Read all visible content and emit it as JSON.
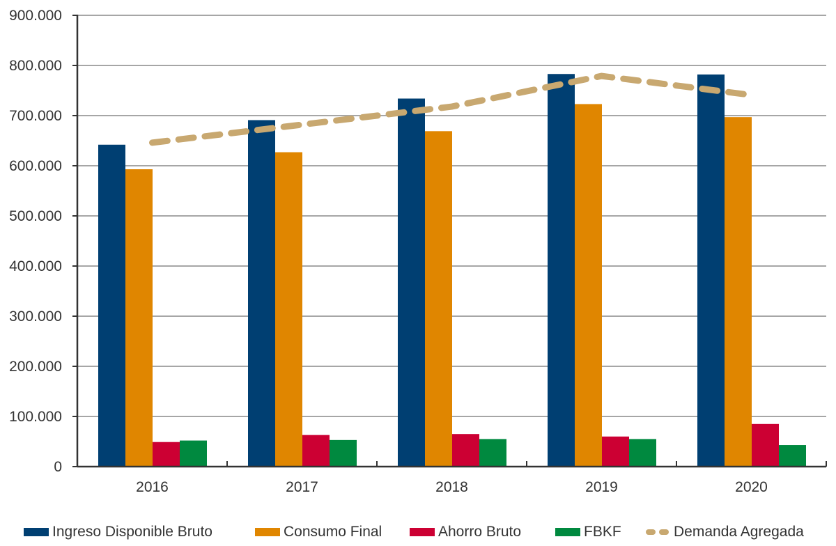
{
  "chart_data": {
    "type": "bar",
    "title": "",
    "xlabel": "",
    "ylabel": "",
    "categories": [
      "2016",
      "2017",
      "2018",
      "2019",
      "2020"
    ],
    "ylim": [
      0,
      900000
    ],
    "yticks": [
      0,
      100000,
      200000,
      300000,
      400000,
      500000,
      600000,
      700000,
      800000,
      900000
    ],
    "ytick_labels": [
      "0",
      "100.000",
      "200.000",
      "300.000",
      "400.000",
      "500.000",
      "600.000",
      "700.000",
      "800.000",
      "900.000"
    ],
    "grid": "horizontal",
    "legend_position": "bottom",
    "series": [
      {
        "name": "Ingreso Disponible Bruto",
        "type": "bar",
        "color": "#003f72",
        "values": [
          642000,
          691000,
          734000,
          783000,
          782000
        ]
      },
      {
        "name": "Consumo Final",
        "type": "bar",
        "color": "#e08600",
        "values": [
          593000,
          627000,
          669000,
          723000,
          697000
        ]
      },
      {
        "name": "Ahorro Bruto",
        "type": "bar",
        "color": "#cc0033",
        "values": [
          49000,
          63000,
          65000,
          60000,
          85000
        ]
      },
      {
        "name": "FBKF",
        "type": "bar",
        "color": "#00893f",
        "values": [
          52000,
          53000,
          55000,
          55000,
          43000
        ]
      },
      {
        "name": "Demanda Agregada",
        "type": "line",
        "style": "dashed",
        "color": "#c8a870",
        "values": [
          646000,
          682000,
          718000,
          779000,
          741000
        ]
      }
    ]
  }
}
